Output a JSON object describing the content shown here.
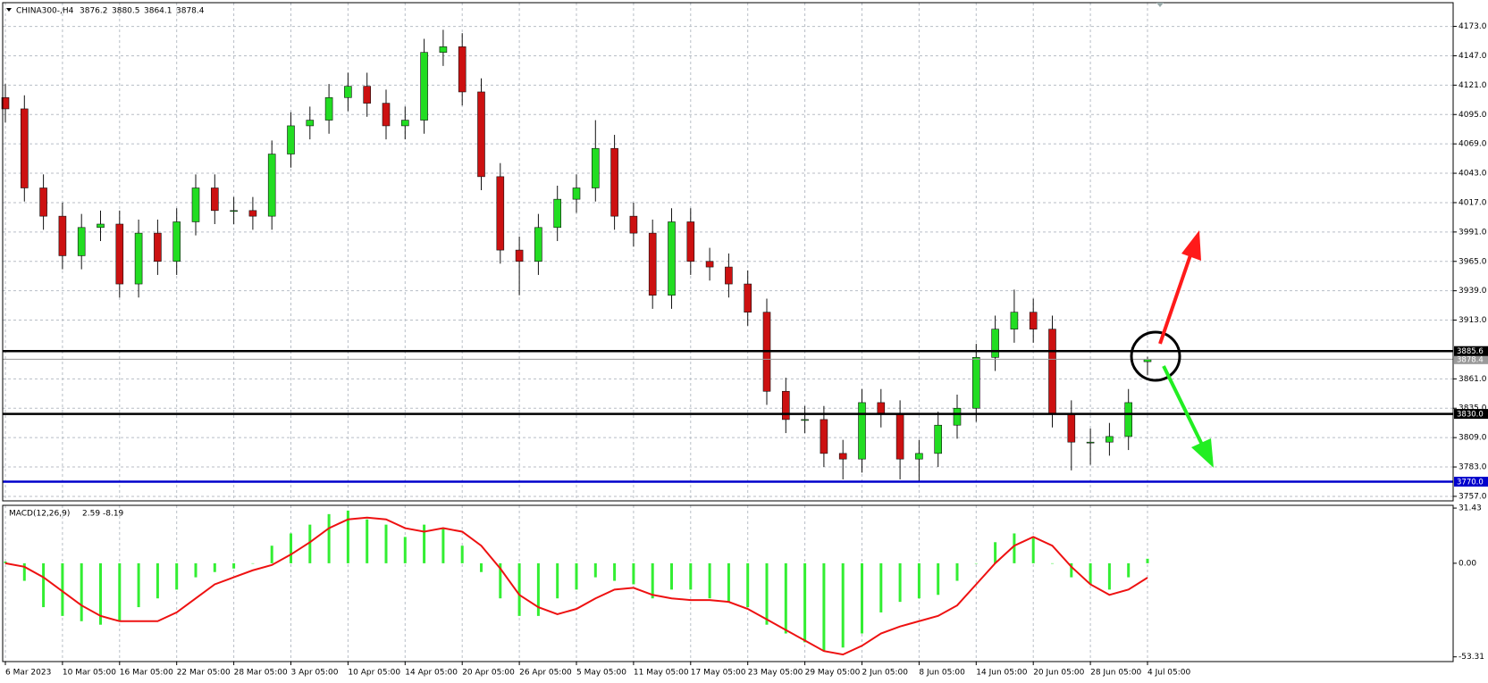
{
  "chart_data": [
    {
      "type": "candlestick",
      "title": "CHINA300-,H4",
      "categories": [
        "6 Mar 2023",
        null,
        null,
        "10 Mar 05:00",
        null,
        null,
        "16 Mar 05:00",
        null,
        null,
        "22 Mar 05:00",
        null,
        null,
        "28 Mar 05:00",
        null,
        null,
        "3 Apr 05:00",
        null,
        null,
        "10 Apr 05:00",
        null,
        null,
        "14 Apr 05:00",
        null,
        null,
        "20 Apr 05:00",
        null,
        null,
        "26 Apr 05:00",
        null,
        null,
        "5 May 05:00",
        null,
        null,
        "11 May 05:00",
        null,
        null,
        "17 May 05:00",
        null,
        null,
        "23 May 05:00",
        null,
        null,
        "29 May 05:00",
        null,
        null,
        "2 Jun 05:00",
        null,
        null,
        "8 Jun 05:00",
        null,
        null,
        "14 Jun 05:00",
        null,
        null,
        "20 Jun 05:00",
        null,
        null,
        "28 Jun 05:00",
        null,
        null,
        "4 Jul 05:00"
      ],
      "open": [
        4110,
        4100,
        4030,
        4005,
        3970,
        3995,
        3998,
        3945,
        3990,
        3965,
        4000,
        4030,
        4010,
        4010,
        4005,
        4060,
        4085,
        4090,
        4110,
        4120,
        4105,
        4085,
        4090,
        4150,
        4155,
        4115,
        4040,
        3975,
        3965,
        3995,
        4020,
        4030,
        4065,
        4005,
        3990,
        3935,
        4000,
        3965,
        3960,
        3945,
        3920,
        3850,
        3825,
        3825,
        3795,
        3790,
        3840,
        3830,
        3790,
        3795,
        3820,
        3835,
        3880,
        3905,
        3920,
        3905,
        3830,
        3805,
        3805,
        3810,
        3876.2
      ],
      "high": [
        4122,
        4112,
        4042,
        4017,
        4007,
        4010,
        4010,
        4002,
        4002,
        4012,
        4042,
        4042,
        4022,
        4022,
        4072,
        4097,
        4102,
        4122,
        4132,
        4132,
        4117,
        4102,
        4162,
        4170,
        4167,
        4127,
        4052,
        3987,
        4007,
        4032,
        4042,
        4090,
        4077,
        4017,
        4002,
        4012,
        4012,
        3977,
        3972,
        3957,
        3932,
        3862,
        3837,
        3837,
        3807,
        3852,
        3852,
        3842,
        3807,
        3832,
        3847,
        3892,
        3917,
        3940,
        3932,
        3917,
        3842,
        3817,
        3822,
        3852,
        3880.5
      ],
      "low": [
        4088,
        4018,
        3993,
        3958,
        3958,
        3983,
        3933,
        3933,
        3953,
        3953,
        3988,
        3998,
        3998,
        3993,
        3993,
        4048,
        4073,
        4078,
        4098,
        4093,
        4073,
        4073,
        4078,
        4138,
        4103,
        4028,
        3963,
        3935,
        3953,
        3983,
        4008,
        4018,
        3993,
        3978,
        3923,
        3923,
        3953,
        3948,
        3933,
        3908,
        3838,
        3813,
        3813,
        3783,
        3772,
        3778,
        3818,
        3772,
        3770,
        3783,
        3808,
        3823,
        3868,
        3893,
        3893,
        3818,
        3780,
        3785,
        3793,
        3798,
        3864.1
      ],
      "close": [
        4100,
        4030,
        4005,
        3970,
        3995,
        3998,
        3945,
        3990,
        3965,
        4000,
        4030,
        4010,
        4010,
        4005,
        4060,
        4085,
        4090,
        4110,
        4120,
        4105,
        4085,
        4090,
        4150,
        4155,
        4115,
        4040,
        3975,
        3965,
        3995,
        4020,
        4030,
        4065,
        4005,
        3990,
        3935,
        4000,
        3965,
        3960,
        3945,
        3920,
        3850,
        3825,
        3825,
        3795,
        3790,
        3840,
        3830,
        3790,
        3795,
        3820,
        3835,
        3880,
        3905,
        3920,
        3905,
        3830,
        3805,
        3805,
        3810,
        3840,
        3878.4
      ],
      "up_color": "#22dd22",
      "down_color": "#cc1111",
      "ylim": [
        3753,
        4194
      ],
      "yticks": [
        {
          "value": 4173,
          "label": "4173.0"
        },
        {
          "value": 4147,
          "label": "4147.0"
        },
        {
          "value": 4121,
          "label": "4121.0"
        },
        {
          "value": 4095,
          "label": "4095.0"
        },
        {
          "value": 4069,
          "label": "4069.0"
        },
        {
          "value": 4043,
          "label": "4043.0"
        },
        {
          "value": 4017,
          "label": "4017.0"
        },
        {
          "value": 3991,
          "label": "3991.0"
        },
        {
          "value": 3965,
          "label": "3965.0"
        },
        {
          "value": 3939,
          "label": "3939.0"
        },
        {
          "value": 3913,
          "label": "3913.0"
        },
        {
          "value": 3861,
          "label": "3861.0"
        },
        {
          "value": 3835,
          "label": "3835.0"
        },
        {
          "value": 3809,
          "label": "3809.0"
        },
        {
          "value": 3783,
          "label": "3783.0"
        },
        {
          "value": 3757,
          "label": "3757.0"
        }
      ],
      "grid": true,
      "hlines": [
        {
          "value": 3878.4,
          "label": "3878.4",
          "color": "#9a9a9a"
        },
        {
          "value": 3885.6,
          "label": "3885.6",
          "color": "#000000"
        },
        {
          "value": 3830,
          "label": "3830.0",
          "color": "#000000"
        },
        {
          "value": 3770,
          "label": "3770.0",
          "color": "#0000cc"
        }
      ]
    },
    {
      "type": "macd",
      "title": "MACD(12,26,9)",
      "histogram": {
        "color": "#33ee33",
        "values": [
          1,
          -10,
          -25,
          -30,
          -33,
          -35,
          -33,
          -25,
          -20,
          -15,
          -8,
          -5,
          -3,
          0,
          10,
          17,
          22,
          28,
          30,
          25,
          22,
          15,
          22,
          20,
          10,
          -5,
          -20,
          -30,
          -30,
          -20,
          -15,
          -8,
          -10,
          -12,
          -20,
          -15,
          -15,
          -20,
          -22,
          -25,
          -35,
          -40,
          -45,
          -50,
          -48,
          -40,
          -28,
          -22,
          -20,
          -18,
          -10,
          0,
          12,
          17,
          15,
          0,
          -8,
          -12,
          -15,
          -8,
          2.59
        ]
      },
      "signal": {
        "color": "#ee1111",
        "values": [
          0,
          -2,
          -8,
          -16,
          -24,
          -30,
          -33,
          -33,
          -33,
          -28,
          -20,
          -12,
          -8,
          -4,
          -1,
          5,
          12,
          20,
          25,
          26,
          25,
          20,
          18,
          20,
          18,
          10,
          -3,
          -18,
          -25,
          -29,
          -26,
          -20,
          -15,
          -14,
          -18,
          -20,
          -21,
          -21,
          -22,
          -26,
          -32,
          -38,
          -44,
          -50,
          -52,
          -47,
          -40,
          -36,
          -33,
          -30,
          -24,
          -12,
          0,
          10,
          15,
          10,
          -2,
          -12,
          -18,
          -15,
          -8.19
        ]
      },
      "ylim": [
        -56,
        33
      ],
      "yticks": [
        31.43,
        {
          "value": 0,
          "label": "0.00"
        },
        -53.31
      ]
    }
  ]
}
